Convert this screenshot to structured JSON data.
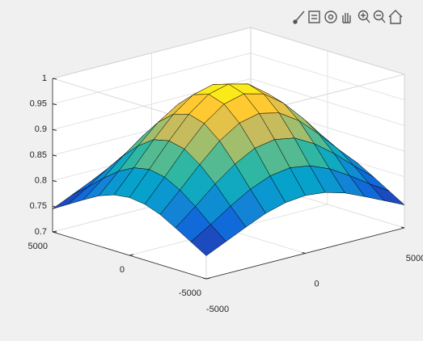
{
  "chart_data": {
    "type": "surface",
    "x": [
      -5000,
      -4000,
      -3000,
      -2000,
      -1000,
      0,
      1000,
      2000,
      3000,
      4000,
      5000
    ],
    "y": [
      -5000,
      -4000,
      -3000,
      -2000,
      -1000,
      0,
      1000,
      2000,
      3000,
      4000,
      5000
    ],
    "z": [
      [
        0.745,
        0.763,
        0.781,
        0.798,
        0.809,
        0.813,
        0.809,
        0.798,
        0.781,
        0.763,
        0.745
      ],
      [
        0.763,
        0.787,
        0.813,
        0.836,
        0.852,
        0.858,
        0.852,
        0.836,
        0.813,
        0.787,
        0.763
      ],
      [
        0.781,
        0.813,
        0.847,
        0.876,
        0.897,
        0.904,
        0.897,
        0.876,
        0.847,
        0.813,
        0.781
      ],
      [
        0.798,
        0.836,
        0.876,
        0.912,
        0.937,
        0.946,
        0.937,
        0.912,
        0.876,
        0.836,
        0.798
      ],
      [
        0.809,
        0.852,
        0.897,
        0.937,
        0.965,
        0.975,
        0.965,
        0.937,
        0.897,
        0.852,
        0.809
      ],
      [
        0.813,
        0.858,
        0.904,
        0.946,
        0.975,
        0.985,
        0.975,
        0.946,
        0.904,
        0.858,
        0.813
      ],
      [
        0.809,
        0.852,
        0.897,
        0.937,
        0.965,
        0.975,
        0.965,
        0.937,
        0.897,
        0.852,
        0.809
      ],
      [
        0.798,
        0.836,
        0.876,
        0.912,
        0.937,
        0.946,
        0.937,
        0.912,
        0.876,
        0.836,
        0.798
      ],
      [
        0.781,
        0.813,
        0.847,
        0.876,
        0.897,
        0.904,
        0.897,
        0.876,
        0.847,
        0.813,
        0.781
      ],
      [
        0.763,
        0.787,
        0.813,
        0.836,
        0.852,
        0.858,
        0.852,
        0.836,
        0.813,
        0.787,
        0.763
      ],
      [
        0.745,
        0.763,
        0.781,
        0.798,
        0.809,
        0.813,
        0.809,
        0.798,
        0.781,
        0.763,
        0.745
      ]
    ],
    "xlim": [
      -5000,
      5000
    ],
    "xticks": [
      -5000,
      0,
      5000
    ],
    "ylim": [
      -5000,
      5000
    ],
    "yticks": [
      -5000,
      0,
      5000
    ],
    "zlim": [
      0.7,
      1
    ],
    "zticks": [
      0.7,
      0.75,
      0.8,
      0.85,
      0.9,
      0.95,
      1
    ],
    "colormap": "parula",
    "edge_color": "#000000",
    "grid": true
  }
}
